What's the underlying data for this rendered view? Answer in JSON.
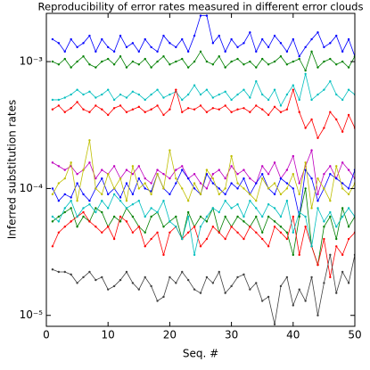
{
  "chart_data": {
    "type": "line",
    "title": "Reproducibility of error rates measured in different error clouds",
    "xlabel": "Seq. #",
    "ylabel": "Inferred substitution rates",
    "log_y": true,
    "xlim": [
      0,
      50
    ],
    "ylim": [
      8.2e-06,
      0.0024
    ],
    "xticks": [
      0,
      10,
      20,
      30,
      40,
      50
    ],
    "yticks": [
      {
        "value": 1e-05,
        "label": "10⁻⁵"
      },
      {
        "value": 0.0001,
        "label": "10⁻⁴"
      },
      {
        "value": 0.001,
        "label": "10⁻³"
      }
    ],
    "x": [
      1,
      2,
      3,
      4,
      5,
      6,
      7,
      8,
      9,
      10,
      11,
      12,
      13,
      14,
      15,
      16,
      17,
      18,
      19,
      20,
      21,
      22,
      23,
      24,
      25,
      26,
      27,
      28,
      29,
      30,
      31,
      32,
      33,
      34,
      35,
      36,
      37,
      38,
      39,
      40,
      41,
      42,
      43,
      44,
      45,
      46,
      47,
      48,
      49,
      50
    ],
    "series": [
      {
        "color": "#0000ff",
        "values": [
          0.0015,
          0.0014,
          0.0012,
          0.0015,
          0.0013,
          0.0014,
          0.0016,
          0.0012,
          0.0015,
          0.0013,
          0.0012,
          0.0016,
          0.0013,
          0.0014,
          0.0012,
          0.0015,
          0.0013,
          0.0012,
          0.0016,
          0.0014,
          0.0013,
          0.0015,
          0.0012,
          0.0016,
          0.0023,
          0.0023,
          0.0014,
          0.0016,
          0.0012,
          0.0015,
          0.0013,
          0.0014,
          0.0017,
          0.0012,
          0.0015,
          0.0013,
          0.0016,
          0.0014,
          0.0012,
          0.0015,
          0.0011,
          0.0013,
          0.0015,
          0.0017,
          0.0013,
          0.0014,
          0.0016,
          0.0012,
          0.0015,
          0.0011
        ]
      },
      {
        "color": "#008000",
        "values": [
          0.001,
          0.00095,
          0.00105,
          0.0009,
          0.001,
          0.0011,
          0.00095,
          0.0009,
          0.001,
          0.00105,
          0.00095,
          0.0011,
          0.0009,
          0.001,
          0.00095,
          0.00105,
          0.0009,
          0.001,
          0.0011,
          0.00095,
          0.001,
          0.00105,
          0.0009,
          0.001,
          0.0012,
          0.001,
          0.00095,
          0.0011,
          0.0009,
          0.001,
          0.00105,
          0.00095,
          0.001,
          0.0009,
          0.00105,
          0.00095,
          0.001,
          0.0011,
          0.00095,
          0.001,
          0.00105,
          0.00085,
          0.0012,
          0.0009,
          0.001,
          0.00105,
          0.00095,
          0.001,
          0.0009,
          0.0011
        ]
      },
      {
        "color": "#00bfbf",
        "values": [
          0.0005,
          0.0005,
          0.00052,
          0.00055,
          0.0006,
          0.00055,
          0.00058,
          0.00052,
          0.00055,
          0.0006,
          0.0005,
          0.00055,
          0.00052,
          0.00058,
          0.00055,
          0.0005,
          0.00055,
          0.0006,
          0.00052,
          0.00055,
          0.00058,
          0.0005,
          0.00055,
          0.00065,
          0.00055,
          0.0006,
          0.00052,
          0.00055,
          0.00058,
          0.0005,
          0.00055,
          0.0006,
          0.00052,
          0.0007,
          0.00055,
          0.0005,
          0.0006,
          0.00045,
          0.00055,
          0.00065,
          0.0005,
          0.0008,
          0.0005,
          0.00055,
          0.0006,
          0.0007,
          0.00055,
          0.0005,
          0.0006,
          0.00055
        ]
      },
      {
        "color": "#ff0000",
        "values": [
          0.00042,
          0.00045,
          0.0004,
          0.00043,
          0.00048,
          0.00042,
          0.0004,
          0.00045,
          0.00042,
          0.00038,
          0.00043,
          0.00045,
          0.0004,
          0.00042,
          0.00044,
          0.0004,
          0.00042,
          0.00045,
          0.00038,
          0.00042,
          0.0006,
          0.0004,
          0.00043,
          0.00042,
          0.00045,
          0.0004,
          0.00043,
          0.00042,
          0.00045,
          0.0004,
          0.00042,
          0.00043,
          0.0004,
          0.00045,
          0.00042,
          0.00038,
          0.00044,
          0.0004,
          0.00042,
          0.0006,
          0.0004,
          0.0003,
          0.00035,
          0.00025,
          0.0003,
          0.0004,
          0.00035,
          0.00028,
          0.00038,
          0.0003
        ]
      },
      {
        "color": "#bf00bf",
        "values": [
          0.00016,
          0.00015,
          0.00014,
          0.00015,
          0.00013,
          0.00014,
          0.00016,
          0.00012,
          0.00014,
          0.00013,
          0.00015,
          0.00012,
          0.00014,
          0.00013,
          0.00015,
          0.00012,
          0.00011,
          0.00014,
          0.00013,
          0.00012,
          0.00014,
          0.00015,
          0.00012,
          0.00013,
          0.00011,
          0.0001,
          0.00013,
          0.00014,
          0.00012,
          0.00015,
          0.00013,
          0.00014,
          0.00012,
          0.00011,
          0.00015,
          0.00013,
          0.00016,
          0.00012,
          0.00014,
          0.00018,
          0.00011,
          0.00015,
          0.0002,
          9e-05,
          0.00013,
          0.00015,
          0.00012,
          0.00016,
          0.00014,
          0.00012
        ]
      },
      {
        "color": "#0000ff",
        "values": [
          0.0001,
          8e-05,
          9e-05,
          8.5e-05,
          0.00011,
          9e-05,
          8e-05,
          0.0001,
          0.00012,
          9e-05,
          0.0001,
          8.5e-05,
          0.00011,
          9e-05,
          0.00012,
          0.0001,
          9.5e-05,
          0.00013,
          0.0001,
          9e-05,
          0.00011,
          0.00014,
          0.00012,
          0.0001,
          9e-05,
          0.00013,
          0.00011,
          0.0001,
          9e-05,
          0.00011,
          0.0001,
          0.00012,
          9e-05,
          0.00011,
          0.00013,
          0.0001,
          9e-05,
          0.00012,
          0.00011,
          0.0001,
          6e-05,
          0.00014,
          0.00012,
          8e-05,
          0.0001,
          0.00013,
          0.00012,
          0.00011,
          0.0001,
          0.00014
        ]
      },
      {
        "color": "#bfbf00",
        "values": [
          9e-05,
          0.00011,
          0.00012,
          0.00016,
          8e-05,
          0.00014,
          0.00024,
          0.0001,
          9e-05,
          0.00013,
          0.0001,
          0.00012,
          8e-05,
          0.00015,
          0.0001,
          0.00011,
          9e-05,
          0.00013,
          0.0001,
          0.0002,
          0.00012,
          0.0001,
          8e-05,
          0.00011,
          9e-05,
          0.00014,
          0.00012,
          9e-05,
          0.0001,
          0.00018,
          0.00011,
          0.0001,
          9e-05,
          8e-05,
          0.00012,
          0.0001,
          0.00011,
          9e-05,
          0.0001,
          0.00013,
          9e-05,
          0.00016,
          7e-05,
          0.00012,
          0.0001,
          8e-05,
          0.00015,
          0.0001,
          9e-05,
          0.00011
        ]
      },
      {
        "color": "#008000",
        "values": [
          5.5e-05,
          6e-05,
          6.5e-05,
          7e-05,
          5e-05,
          6e-05,
          5.5e-05,
          7e-05,
          6.5e-05,
          5e-05,
          6e-05,
          5.5e-05,
          7e-05,
          6e-05,
          5e-05,
          4.5e-05,
          6e-05,
          6.5e-05,
          5e-05,
          5.5e-05,
          6e-05,
          4e-05,
          6.5e-05,
          5e-05,
          6e-05,
          5.5e-05,
          7e-05,
          4.5e-05,
          6e-05,
          5e-05,
          6e-05,
          5.5e-05,
          5e-05,
          6e-05,
          4.5e-05,
          6e-05,
          5.5e-05,
          5e-05,
          4.5e-05,
          3e-05,
          6e-05,
          0.0001,
          3.5e-05,
          2.5e-05,
          5e-05,
          6e-05,
          4e-05,
          7e-05,
          5e-05,
          6e-05
        ]
      },
      {
        "color": "#ff0000",
        "values": [
          3.5e-05,
          4.5e-05,
          5e-05,
          5.5e-05,
          6e-05,
          6.5e-05,
          5.5e-05,
          5e-05,
          4.5e-05,
          5e-05,
          4e-05,
          6e-05,
          5.5e-05,
          4.5e-05,
          5e-05,
          3.5e-05,
          4e-05,
          4.5e-05,
          3e-05,
          4.5e-05,
          5e-05,
          4e-05,
          4.5e-05,
          5e-05,
          3.5e-05,
          4e-05,
          5e-05,
          4.5e-05,
          4e-05,
          5e-05,
          4.5e-05,
          4e-05,
          5e-05,
          4.5e-05,
          4e-05,
          3.5e-05,
          5e-05,
          4.5e-05,
          4e-05,
          6e-05,
          3e-05,
          5e-05,
          3.5e-05,
          2.5e-05,
          4e-05,
          2e-05,
          3.5e-05,
          3e-05,
          4e-05,
          4.5e-05
        ]
      },
      {
        "color": "#00bfbf",
        "values": [
          6e-05,
          5.5e-05,
          7e-05,
          8e-05,
          6e-05,
          7e-05,
          7.5e-05,
          6.5e-05,
          8e-05,
          7e-05,
          9e-05,
          8e-05,
          7e-05,
          7.5e-05,
          8e-05,
          6e-05,
          7e-05,
          6.5e-05,
          8e-05,
          5.5e-05,
          5e-05,
          4e-05,
          6e-05,
          3e-05,
          5e-05,
          6e-05,
          7e-05,
          6.5e-05,
          8e-05,
          7e-05,
          7.5e-05,
          6e-05,
          8e-05,
          7e-05,
          6e-05,
          7.5e-05,
          7e-05,
          6e-05,
          8e-05,
          4.5e-05,
          6.5e-05,
          6e-05,
          3.5e-05,
          7e-05,
          5.5e-05,
          6.5e-05,
          5e-05,
          6e-05,
          7e-05,
          6e-05
        ]
      },
      {
        "color": "#404040",
        "values": [
          2.3e-05,
          2.2e-05,
          2.2e-05,
          2.1e-05,
          1.8e-05,
          2e-05,
          2.2e-05,
          1.9e-05,
          2e-05,
          1.6e-05,
          1.7e-05,
          1.9e-05,
          2.2e-05,
          1.8e-05,
          1.6e-05,
          2e-05,
          1.7e-05,
          1.3e-05,
          1.4e-05,
          2e-05,
          1.8e-05,
          2.2e-05,
          1.9e-05,
          1.6e-05,
          1.5e-05,
          2e-05,
          1.8e-05,
          2.2e-05,
          1.5e-05,
          1.7e-05,
          2e-05,
          2.1e-05,
          1.6e-05,
          1.8e-05,
          1.3e-05,
          1.4e-05,
          8.5e-06,
          1.7e-05,
          2e-05,
          1.2e-05,
          1.6e-05,
          1.3e-05,
          2e-05,
          1e-05,
          1.8e-05,
          3e-05,
          1.5e-05,
          2.2e-05,
          1.8e-05,
          3e-05
        ]
      }
    ]
  }
}
